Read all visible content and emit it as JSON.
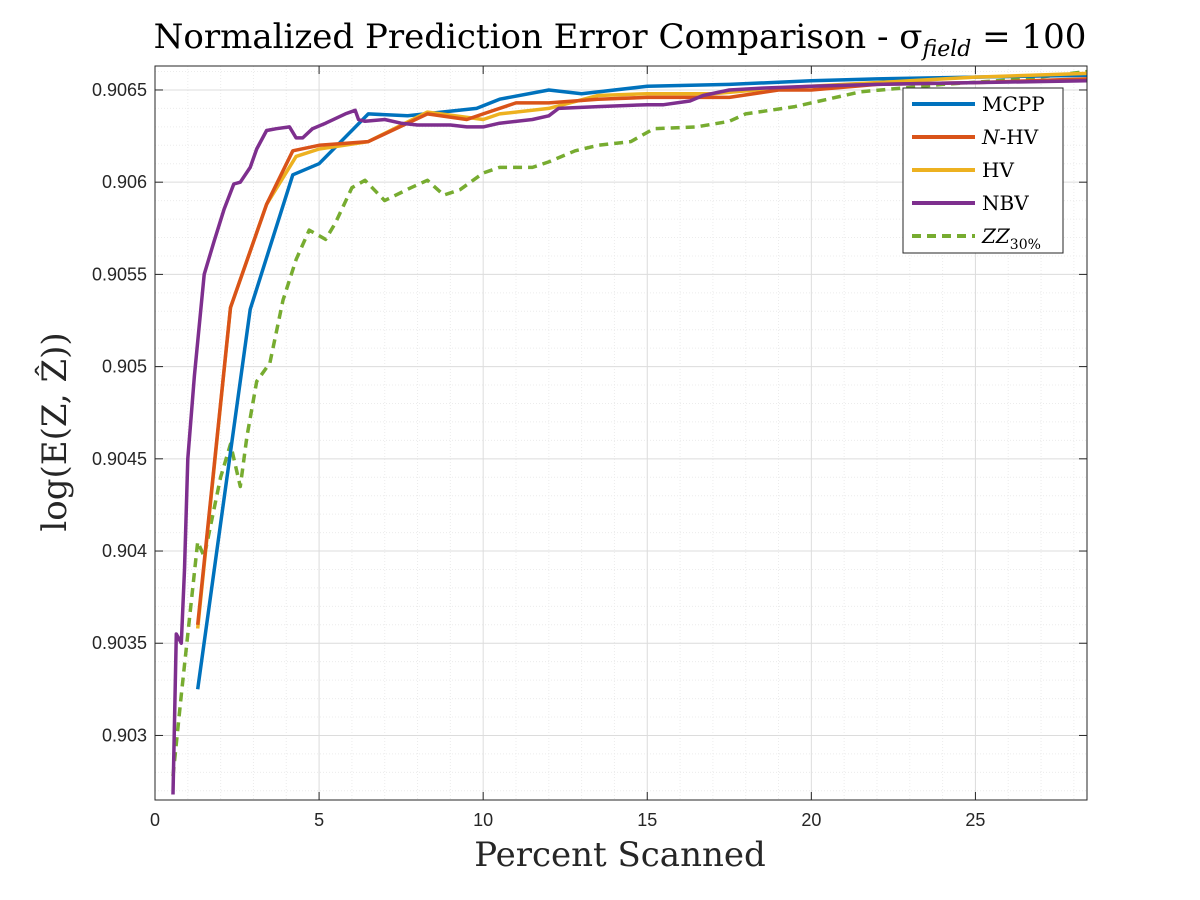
{
  "chart_data": {
    "type": "line",
    "title": "Normalized Prediction Error Comparison - σ",
    "title_subscript": "field",
    "title_suffix": " = 100",
    "xlabel": "Percent Scanned",
    "ylabel": "log(E(Z, Ẑ))",
    "xlim": [
      0,
      28.4
    ],
    "ylim": [
      0.90265,
      0.90663
    ],
    "x_ticks": [
      0,
      5,
      10,
      15,
      20,
      25
    ],
    "x_tick_labels": [
      "0",
      "5",
      "10",
      "15",
      "20",
      "25"
    ],
    "y_ticks": [
      0.903,
      0.9035,
      0.904,
      0.9045,
      0.905,
      0.9055,
      0.906,
      0.9065
    ],
    "y_tick_labels": [
      "0.903",
      "0.9035",
      "0.904",
      "0.9045",
      "0.905",
      "0.9055",
      "0.906",
      "0.9065"
    ],
    "grid": true,
    "minor_grid": true,
    "legend_position": "top-right",
    "series": [
      {
        "name": "MCPP",
        "color": "#0072BD",
        "dashed": false,
        "points": [
          [
            1.3,
            0.90325
          ],
          [
            2.9,
            0.90531
          ],
          [
            4.2,
            0.90604
          ],
          [
            5.0,
            0.9061
          ],
          [
            6.5,
            0.90637
          ],
          [
            7.7,
            0.90636
          ],
          [
            9.8,
            0.9064
          ],
          [
            10.5,
            0.90645
          ],
          [
            12.0,
            0.9065
          ],
          [
            13.0,
            0.90648
          ],
          [
            15.0,
            0.90652
          ],
          [
            17.5,
            0.90653
          ],
          [
            20.0,
            0.90655
          ],
          [
            22.0,
            0.90656
          ],
          [
            25.0,
            0.90657
          ],
          [
            28.4,
            0.90658
          ]
        ]
      },
      {
        "name": "N-HV",
        "color": "#D95319",
        "dashed": false,
        "points": [
          [
            1.3,
            0.9036
          ],
          [
            2.3,
            0.90532
          ],
          [
            3.4,
            0.90588
          ],
          [
            4.2,
            0.90617
          ],
          [
            5.0,
            0.9062
          ],
          [
            6.5,
            0.90622
          ],
          [
            8.3,
            0.90637
          ],
          [
            9.5,
            0.90634
          ],
          [
            10.0,
            0.90637
          ],
          [
            11.0,
            0.90643
          ],
          [
            12.0,
            0.90643
          ],
          [
            13.5,
            0.90645
          ],
          [
            15.0,
            0.90646
          ],
          [
            17.5,
            0.90646
          ],
          [
            19.0,
            0.9065
          ],
          [
            20.0,
            0.9065
          ],
          [
            22.0,
            0.90653
          ],
          [
            25.0,
            0.90654
          ],
          [
            28.4,
            0.90656
          ]
        ]
      },
      {
        "name": "HV",
        "color": "#EDB120",
        "dashed": false,
        "points": [
          [
            1.3,
            0.90358
          ],
          [
            2.3,
            0.90532
          ],
          [
            3.4,
            0.90588
          ],
          [
            4.3,
            0.90614
          ],
          [
            5.0,
            0.90618
          ],
          [
            6.5,
            0.90622
          ],
          [
            8.3,
            0.90638
          ],
          [
            10.0,
            0.90634
          ],
          [
            10.5,
            0.90637
          ],
          [
            12.0,
            0.9064
          ],
          [
            13.5,
            0.90647
          ],
          [
            15.0,
            0.90648
          ],
          [
            17.0,
            0.90648
          ],
          [
            19.0,
            0.90651
          ],
          [
            21.0,
            0.90653
          ],
          [
            23.0,
            0.90655
          ],
          [
            25.0,
            0.90657
          ],
          [
            28.4,
            0.90659
          ]
        ]
      },
      {
        "name": "NBV",
        "color": "#7E2F8E",
        "dashed": false,
        "points": [
          [
            0.55,
            0.90268
          ],
          [
            0.65,
            0.90355
          ],
          [
            0.8,
            0.9035
          ],
          [
            0.9,
            0.9039
          ],
          [
            1.0,
            0.9045
          ],
          [
            1.2,
            0.90495
          ],
          [
            1.5,
            0.9055
          ],
          [
            1.8,
            0.90568
          ],
          [
            2.1,
            0.90585
          ],
          [
            2.4,
            0.90599
          ],
          [
            2.6,
            0.906
          ],
          [
            2.9,
            0.90608
          ],
          [
            3.1,
            0.90618
          ],
          [
            3.4,
            0.90628
          ],
          [
            3.7,
            0.90629
          ],
          [
            4.1,
            0.9063
          ],
          [
            4.3,
            0.90624
          ],
          [
            4.5,
            0.90624
          ],
          [
            4.8,
            0.90629
          ],
          [
            5.2,
            0.90632
          ],
          [
            5.8,
            0.90637
          ],
          [
            6.1,
            0.90639
          ],
          [
            6.2,
            0.90634
          ],
          [
            6.4,
            0.90633
          ],
          [
            7.0,
            0.90634
          ],
          [
            7.5,
            0.90632
          ],
          [
            8.0,
            0.90631
          ],
          [
            9.0,
            0.90631
          ],
          [
            9.5,
            0.9063
          ],
          [
            10.0,
            0.9063
          ],
          [
            10.5,
            0.90632
          ],
          [
            11.5,
            0.90634
          ],
          [
            12.0,
            0.90636
          ],
          [
            12.3,
            0.9064
          ],
          [
            13.5,
            0.90641
          ],
          [
            15.0,
            0.90642
          ],
          [
            15.5,
            0.90642
          ],
          [
            16.3,
            0.90644
          ],
          [
            16.7,
            0.90647
          ],
          [
            17.5,
            0.9065
          ],
          [
            18.5,
            0.90651
          ],
          [
            20.0,
            0.90652
          ],
          [
            22.0,
            0.90653
          ],
          [
            25.0,
            0.90654
          ],
          [
            28.4,
            0.90655
          ]
        ]
      },
      {
        "name": "ZZ30%",
        "color": "#77AC30",
        "dashed": true,
        "points": [
          [
            0.55,
            0.90278
          ],
          [
            0.8,
            0.90322
          ],
          [
            1.3,
            0.90405
          ],
          [
            1.5,
            0.90397
          ],
          [
            2.0,
            0.9044
          ],
          [
            2.3,
            0.90458
          ],
          [
            2.6,
            0.90435
          ],
          [
            2.8,
            0.90462
          ],
          [
            3.1,
            0.90492
          ],
          [
            3.5,
            0.90502
          ],
          [
            3.9,
            0.90536
          ],
          [
            4.3,
            0.90558
          ],
          [
            4.7,
            0.90574
          ],
          [
            5.2,
            0.90569
          ],
          [
            5.5,
            0.90578
          ],
          [
            6.0,
            0.90597
          ],
          [
            6.4,
            0.90601
          ],
          [
            7.0,
            0.9059
          ],
          [
            7.8,
            0.90597
          ],
          [
            8.3,
            0.90601
          ],
          [
            8.8,
            0.90593
          ],
          [
            9.3,
            0.90596
          ],
          [
            10.0,
            0.90605
          ],
          [
            10.5,
            0.90608
          ],
          [
            11.0,
            0.90608
          ],
          [
            11.5,
            0.90608
          ],
          [
            12.0,
            0.90611
          ],
          [
            12.8,
            0.90617
          ],
          [
            13.5,
            0.9062
          ],
          [
            14.5,
            0.90622
          ],
          [
            15.2,
            0.90629
          ],
          [
            16.5,
            0.9063
          ],
          [
            17.5,
            0.90633
          ],
          [
            18.0,
            0.90637
          ],
          [
            19.5,
            0.90641
          ],
          [
            20.5,
            0.90645
          ],
          [
            21.5,
            0.90649
          ],
          [
            24.0,
            0.90653
          ],
          [
            26.5,
            0.90656
          ],
          [
            28.4,
            0.9066
          ]
        ]
      }
    ],
    "legend": [
      {
        "label": "MCPP",
        "color": "#0072BD",
        "dashed": false,
        "italic_prefix": "",
        "subscript": ""
      },
      {
        "label": "-HV",
        "color": "#D95319",
        "dashed": false,
        "italic_prefix": "N",
        "subscript": ""
      },
      {
        "label": "HV",
        "color": "#EDB120",
        "dashed": false,
        "italic_prefix": "",
        "subscript": ""
      },
      {
        "label": "NBV",
        "color": "#7E2F8E",
        "dashed": false,
        "italic_prefix": "",
        "subscript": ""
      },
      {
        "label": "",
        "color": "#77AC30",
        "dashed": true,
        "italic_prefix": "ZZ",
        "subscript": "30%"
      }
    ]
  }
}
